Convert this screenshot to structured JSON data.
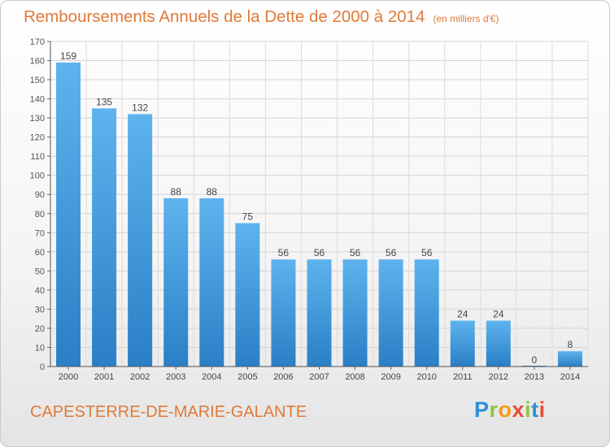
{
  "chart_data": {
    "type": "bar",
    "title": "Remboursements Annuels de la Dette de 2000 à 2014",
    "subtitle": "(en milliers d'€)",
    "categories": [
      "2000",
      "2001",
      "2002",
      "2003",
      "2004",
      "2005",
      "2006",
      "2007",
      "2008",
      "2009",
      "2010",
      "2011",
      "2012",
      "2013",
      "2014"
    ],
    "values": [
      159,
      135,
      132,
      88,
      88,
      75,
      56,
      56,
      56,
      56,
      56,
      24,
      24,
      0,
      8
    ],
    "ylim": [
      0,
      170
    ],
    "yticks": [
      0,
      10,
      20,
      30,
      40,
      50,
      60,
      70,
      80,
      90,
      100,
      110,
      120,
      130,
      140,
      150,
      160,
      170
    ],
    "grid": true,
    "xlabel": "",
    "ylabel": ""
  },
  "place": "CAPESTERRE-DE-MARIE-GALANTE",
  "logo": {
    "letters": [
      "P",
      "r",
      "o",
      "x",
      "i",
      "t",
      "i"
    ],
    "colors": [
      "#2b8fd8",
      "#8cc63f",
      "#f39c12",
      "#e74c3c",
      "#8cc63f",
      "#2b8fd8",
      "#e74c3c"
    ]
  }
}
